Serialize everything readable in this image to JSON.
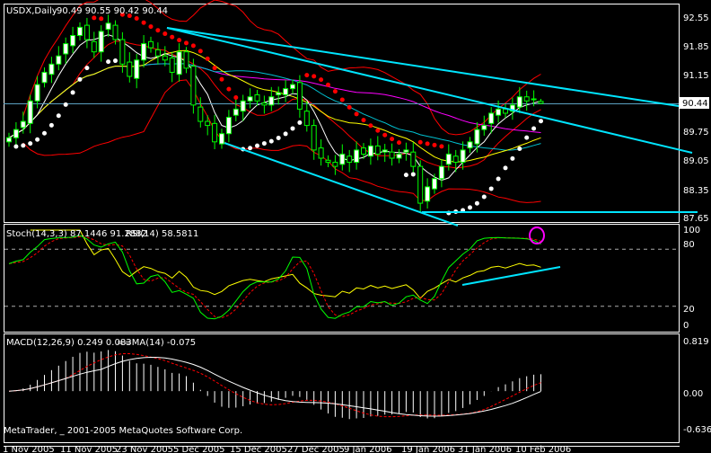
{
  "header": {
    "symbol_label": "USDX,Daily",
    "ohlc_label": "90.49 90.55 90.42 90.44"
  },
  "stoch_panel": {
    "label": "Stoch(14,3,3) 87.1446 91.2882",
    "rsi_label": "RSI(14) 58.5811",
    "levels": [
      "100",
      "80",
      "20",
      "0"
    ]
  },
  "macd_panel": {
    "label": "MACD(12,26,9) 0.249 0.083",
    "ma_label": "==MA(14) -0.075",
    "ticks": [
      "0.819",
      "0.00",
      "-0.636"
    ]
  },
  "copyright": "MetaTrader, _ 2001-2005 MetaQuotes Software Corp.",
  "price_axis": {
    "ticks": [
      "92.55",
      "91.85",
      "91.15",
      "89.75",
      "89.05",
      "88.35",
      "87.65"
    ],
    "current_price": "90.44"
  },
  "date_axis": [
    "1 Nov 2005",
    "11 Nov 2005",
    "23 Nov 2005",
    "5 Dec 2005",
    "15 Dec 2005",
    "27 Dec 2005",
    "9 Jan 2006",
    "19 Jan 2006",
    "31 Jan 2006",
    "10 Feb 2006"
  ],
  "colors": {
    "background": "#000000",
    "candle": "#00ff00",
    "bollinger": "#ff0000",
    "trendline": "#00e5ff",
    "ma_fast": "#ffffff",
    "ma_yellow": "#ffff00",
    "ma_cyan": "#00c0d0",
    "ma_magenta": "#ff00ff",
    "stoch_main": "#00ff00",
    "stoch_signal": "#ff0000",
    "rsi": "#ffff00",
    "macd_hist": "#ffffff",
    "macd_signal": "#ff0000"
  },
  "chart_data": {
    "type": "candlestick",
    "symbol": "USDX",
    "timeframe": "Daily",
    "ylim": [
      87.65,
      92.55
    ],
    "x_range": [
      "1 Nov 2005",
      "14 Feb 2006"
    ],
    "closes": [
      89.6,
      89.8,
      90.0,
      90.5,
      90.9,
      91.2,
      91.4,
      91.6,
      91.9,
      92.1,
      92.3,
      92.0,
      91.7,
      92.2,
      92.4,
      92.0,
      91.4,
      91.1,
      91.5,
      91.9,
      91.8,
      91.6,
      91.5,
      91.2,
      91.7,
      91.3,
      90.4,
      90.0,
      89.9,
      89.5,
      89.7,
      90.1,
      90.3,
      90.5,
      90.6,
      90.5,
      90.4,
      90.6,
      90.7,
      90.8,
      90.9,
      90.3,
      89.9,
      89.3,
      89.1,
      89.0,
      88.9,
      89.2,
      89.0,
      89.3,
      89.2,
      89.4,
      89.2,
      89.3,
      89.1,
      89.2,
      89.3,
      88.9,
      88.0,
      88.4,
      88.6,
      88.9,
      89.2,
      89.0,
      89.3,
      89.5,
      89.8,
      89.9,
      90.2,
      90.3,
      90.2,
      90.4,
      90.6,
      90.5,
      90.55,
      90.44
    ],
    "last_bar": {
      "open": 90.49,
      "high": 90.55,
      "low": 90.42,
      "close": 90.44
    },
    "indicators": {
      "stochastic": {
        "params": "14,3,3",
        "main": 87.1446,
        "signal": 91.2882,
        "levels": [
          20,
          80
        ],
        "ylim": [
          0,
          100
        ]
      },
      "rsi": {
        "period": 14,
        "value": 58.5811
      },
      "macd": {
        "params": "12,26,9",
        "macd": 0.249,
        "signal": 0.083,
        "ma14": -0.075,
        "ylim": [
          -0.636,
          0.819
        ]
      }
    }
  }
}
